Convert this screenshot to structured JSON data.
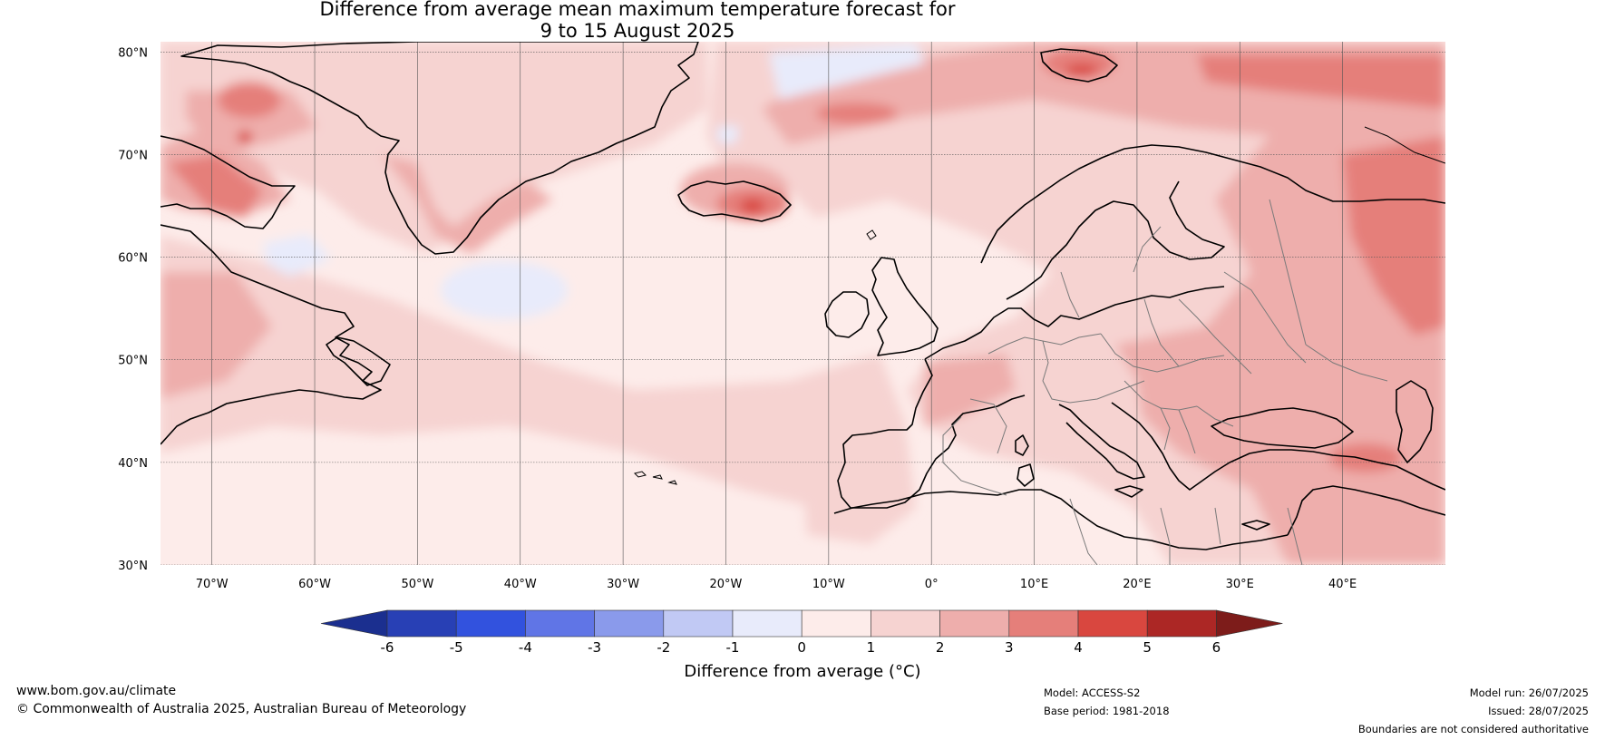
{
  "title_line1": "Difference from average mean maximum temperature forecast for",
  "title_line2": "9 to 15 August 2025",
  "map": {
    "lat_labels": [
      "80°N",
      "70°N",
      "60°N",
      "50°N",
      "40°N",
      "30°N"
    ],
    "lon_labels": [
      "70°W",
      "60°W",
      "50°W",
      "40°W",
      "30°W",
      "20°W",
      "10°W",
      "0°",
      "10°E",
      "20°E",
      "30°E",
      "40°E"
    ],
    "lat_range": [
      30,
      81
    ],
    "lon_range": [
      -75,
      50
    ]
  },
  "colorbar": {
    "ticks": [
      "-6",
      "-5",
      "-4",
      "-3",
      "-2",
      "-1",
      "0",
      "1",
      "2",
      "3",
      "4",
      "5",
      "6"
    ],
    "colors": [
      "#1b2f8f",
      "#2840b5",
      "#3252de",
      "#6075e6",
      "#8a9aeb",
      "#c1c9f4",
      "#e8ebfb",
      "#fdecea",
      "#f6d3d1",
      "#eeaeac",
      "#e57f7a",
      "#d9473f",
      "#ac2725",
      "#7d1c1a"
    ],
    "label": "Difference from average (°C)"
  },
  "footer": {
    "website": "www.bom.gov.au/climate",
    "copyright": "© Commonwealth of Australia 2025, Australian Bureau of Meteorology",
    "model": "Model: ACCESS-S2",
    "base_period": "Base period: 1981-2018",
    "model_run": "Model run: 26/07/2025",
    "issued": "Issued: 28/07/2025",
    "disclaimer": "Boundaries are not considered authoritative"
  }
}
